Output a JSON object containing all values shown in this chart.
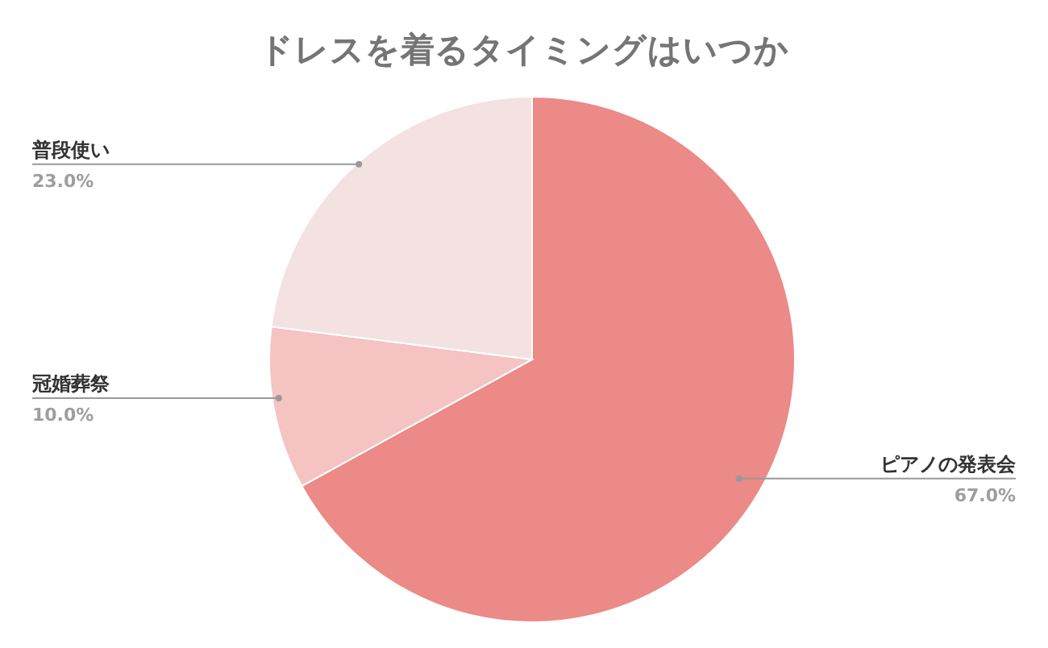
{
  "chart_data": {
    "type": "pie",
    "title": "ドレスを着るタイミングはいつか",
    "categories": [
      "ピアノの発表会",
      "冠婚葬祭",
      "普段使い"
    ],
    "values": [
      67.0,
      10.0,
      23.0
    ],
    "colors": [
      "#eb8a87",
      "#f5c3c1",
      "#f4e1e1"
    ],
    "value_labels": [
      "67.0%",
      "10.0%",
      "23.0%"
    ],
    "legend": false
  }
}
